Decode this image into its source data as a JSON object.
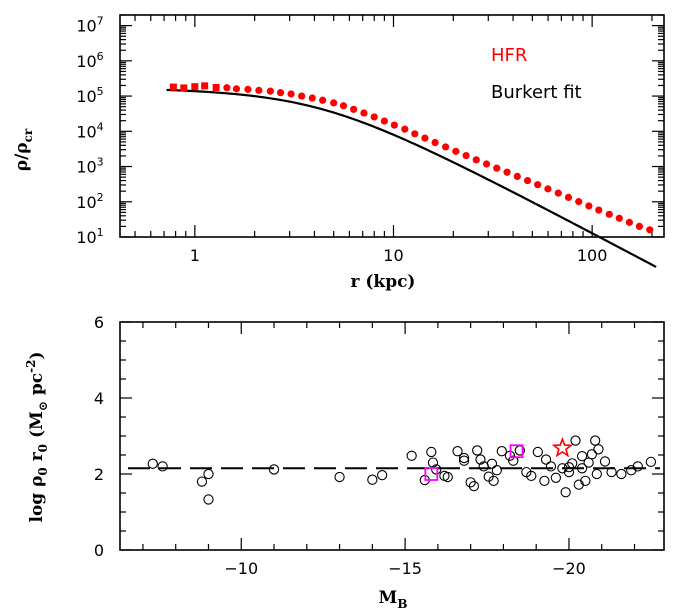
{
  "chart_data": [
    {
      "type": "line",
      "xlabel": "r (kpc)",
      "ylabel_main": "ρ/ρ",
      "ylabel_sub": "cr",
      "xscale": "log",
      "yscale": "log",
      "xlim": [
        0.42,
        230
      ],
      "ylim": [
        10,
        20000000
      ],
      "x_ticks": [
        {
          "v": 1,
          "label": "1"
        },
        {
          "v": 10,
          "label": "10"
        },
        {
          "v": 100,
          "label": "100"
        }
      ],
      "y_ticks": [
        {
          "v": 10,
          "base": "10",
          "exp": "1"
        },
        {
          "v": 100,
          "base": "10",
          "exp": "2"
        },
        {
          "v": 1000,
          "base": "10",
          "exp": "3"
        },
        {
          "v": 10000,
          "base": "10",
          "exp": "4"
        },
        {
          "v": 100000,
          "base": "10",
          "exp": "5"
        },
        {
          "v": 1000000,
          "base": "10",
          "exp": "6"
        },
        {
          "v": 10000000,
          "base": "10",
          "exp": "7"
        }
      ],
      "legend": {
        "hfr": "HFR",
        "fit": "Burkert fit",
        "position": "top-right"
      },
      "colors": {
        "hfr": "#ff0000",
        "fit": "#000000"
      },
      "hfr_squares": [
        [
          0.78,
          180000
        ],
        [
          0.88,
          170000
        ],
        [
          1.0,
          185000
        ],
        [
          1.12,
          195000
        ],
        [
          1.28,
          175000
        ]
      ],
      "hfr_points": [
        [
          1.45,
          172000
        ],
        [
          1.62,
          160000
        ],
        [
          1.85,
          155000
        ],
        [
          2.1,
          145000
        ],
        [
          2.4,
          138000
        ],
        [
          2.7,
          125000
        ],
        [
          3.05,
          115000
        ],
        [
          3.45,
          100000
        ],
        [
          3.9,
          88000
        ],
        [
          4.4,
          76000
        ],
        [
          5.0,
          64000
        ],
        [
          5.6,
          53000
        ],
        [
          6.3,
          42000
        ],
        [
          7.1,
          33000
        ],
        [
          8.0,
          25500
        ],
        [
          9.0,
          19500
        ],
        [
          10.1,
          15000
        ],
        [
          11.4,
          11500
        ],
        [
          12.8,
          8500
        ],
        [
          14.4,
          6400
        ],
        [
          16.2,
          4800
        ],
        [
          18.3,
          3600
        ],
        [
          20.6,
          2700
        ],
        [
          23.2,
          2050
        ],
        [
          26.1,
          1550
        ],
        [
          29.4,
          1180
        ],
        [
          33.1,
          900
        ],
        [
          37.3,
          690
        ],
        [
          42.0,
          525
        ],
        [
          47.3,
          400
        ],
        [
          53.2,
          305
        ],
        [
          59.9,
          232
        ],
        [
          67.5,
          176
        ],
        [
          76.0,
          133
        ],
        [
          85.6,
          101
        ],
        [
          96.3,
          76
        ],
        [
          108,
          58
        ],
        [
          122,
          44
        ],
        [
          137,
          34
        ],
        [
          154,
          26
        ],
        [
          173,
          20
        ],
        [
          195,
          16
        ]
      ],
      "fit": {
        "rho0": 180000,
        "r0": 4.2,
        "r_range": [
          0.72,
          210
        ]
      }
    },
    {
      "type": "scatter",
      "xlabel_main": "M",
      "xlabel_sub": "B",
      "ylabel_main": "log ρ",
      "ylabel_sub1": "0",
      "ylabel_mid": " r",
      "ylabel_sub2": "0",
      "ylabel_unit": "(M",
      "ylabel_unit_sub": "⊙",
      "ylabel_unit_end": " pc",
      "ylabel_unit_sup": "-2",
      "ylabel_close": ")",
      "xlim": [
        -6.3,
        -22.9
      ],
      "ylim": [
        0,
        6
      ],
      "x_ticks": [
        {
          "v": -10,
          "label": "−10"
        },
        {
          "v": -15,
          "label": "−15"
        },
        {
          "v": -20,
          "label": "−20"
        }
      ],
      "y_ticks": [
        {
          "v": 0,
          "label": "0"
        },
        {
          "v": 2,
          "label": "2"
        },
        {
          "v": 4,
          "label": "4"
        },
        {
          "v": 6,
          "label": "6"
        }
      ],
      "reference_line": {
        "y": 2.15,
        "style": "dashed"
      },
      "colors": {
        "circles": "#000000",
        "squares": "#ff00ff",
        "star": "#ff0000"
      },
      "circles": [
        [
          -7.3,
          2.27
        ],
        [
          -7.6,
          2.2
        ],
        [
          -8.8,
          1.8
        ],
        [
          -9.0,
          2.0
        ],
        [
          -9.0,
          1.33
        ],
        [
          -11.0,
          2.12
        ],
        [
          -13.0,
          1.92
        ],
        [
          -14.0,
          1.85
        ],
        [
          -14.3,
          1.97
        ],
        [
          -15.2,
          2.48
        ],
        [
          -15.6,
          1.84
        ],
        [
          -15.8,
          2.58
        ],
        [
          -15.85,
          2.3
        ],
        [
          -15.95,
          2.12
        ],
        [
          -16.3,
          1.92
        ],
        [
          -16.6,
          2.6
        ],
        [
          -16.8,
          2.42
        ],
        [
          -16.8,
          2.35
        ],
        [
          -17.0,
          1.78
        ],
        [
          -17.2,
          2.62
        ],
        [
          -17.3,
          2.38
        ],
        [
          -17.4,
          2.2
        ],
        [
          -17.55,
          1.93
        ],
        [
          -17.7,
          1.82
        ],
        [
          -17.8,
          2.1
        ],
        [
          -17.95,
          2.6
        ],
        [
          -18.2,
          2.48
        ],
        [
          -18.3,
          2.35
        ],
        [
          -18.5,
          2.62
        ],
        [
          -18.85,
          1.95
        ],
        [
          -19.05,
          2.58
        ],
        [
          -19.25,
          1.82
        ],
        [
          -19.3,
          2.38
        ],
        [
          -19.45,
          2.2
        ],
        [
          -19.6,
          1.9
        ],
        [
          -19.8,
          2.15
        ],
        [
          -19.9,
          1.52
        ],
        [
          -20.0,
          2.05
        ],
        [
          -20.0,
          2.18
        ],
        [
          -20.1,
          2.28
        ],
        [
          -20.2,
          2.88
        ],
        [
          -20.3,
          1.72
        ],
        [
          -20.4,
          2.15
        ],
        [
          -20.4,
          2.47
        ],
        [
          -20.5,
          1.82
        ],
        [
          -20.6,
          2.3
        ],
        [
          -20.7,
          2.52
        ],
        [
          -20.8,
          2.88
        ],
        [
          -20.85,
          2.0
        ],
        [
          -20.9,
          2.65
        ],
        [
          -21.1,
          2.33
        ],
        [
          -21.3,
          2.05
        ],
        [
          -21.6,
          2.0
        ],
        [
          -21.9,
          2.1
        ],
        [
          -22.1,
          2.2
        ],
        [
          -22.5,
          2.32
        ],
        [
          -17.1,
          1.68
        ],
        [
          -16.2,
          1.95
        ],
        [
          -18.7,
          2.05
        ],
        [
          -17.65,
          2.27
        ]
      ],
      "squares": [
        [
          -15.8,
          2.0
        ],
        [
          -18.4,
          2.6
        ]
      ],
      "star": [
        [
          -19.8,
          2.68
        ]
      ]
    }
  ]
}
